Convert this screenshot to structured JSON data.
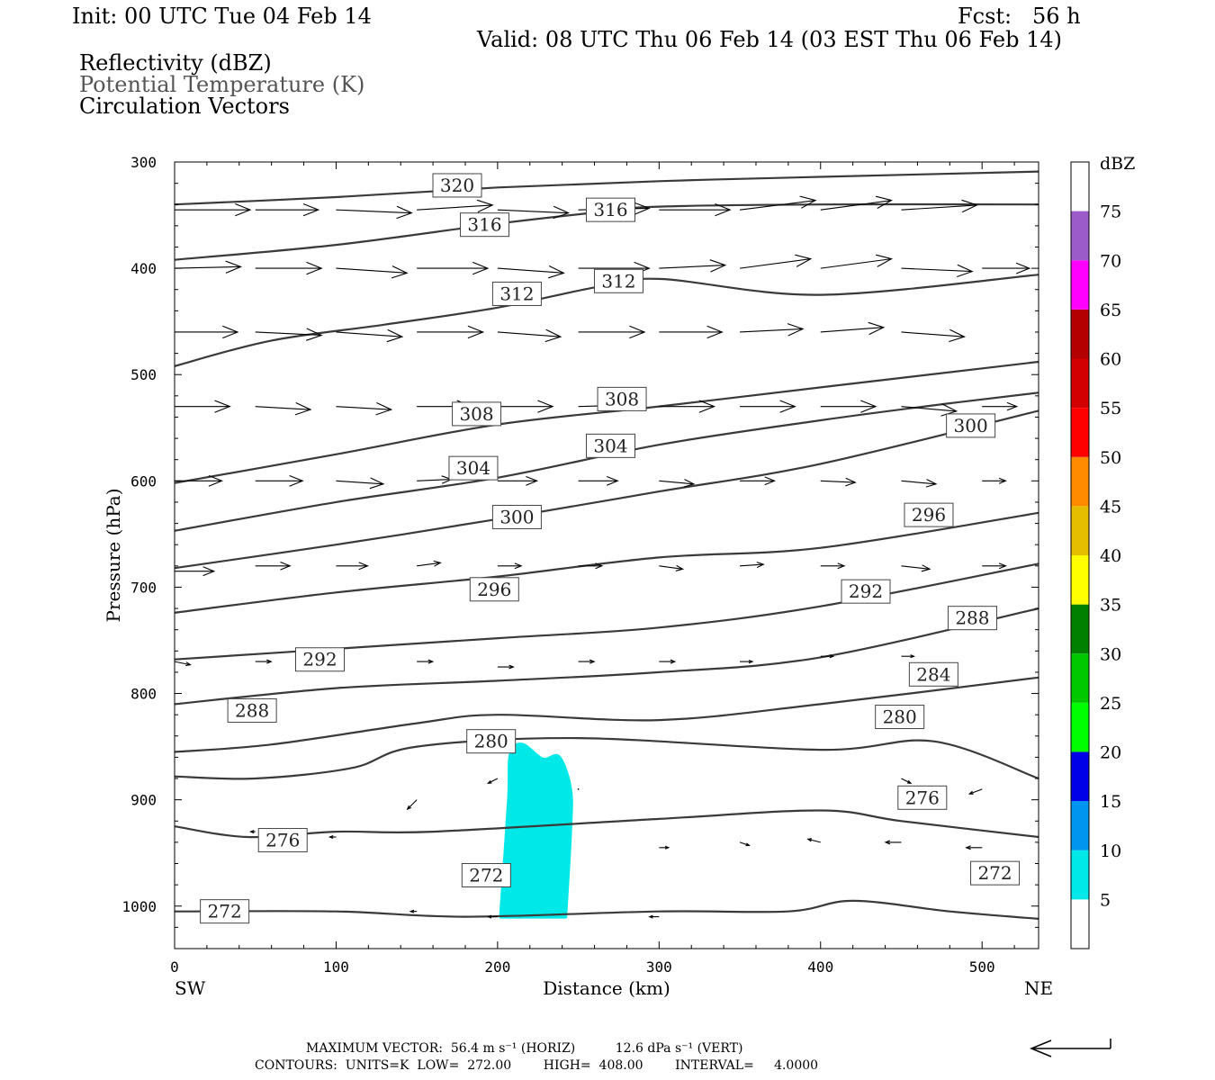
{
  "header": {
    "init": "Init: 00 UTC Tue 04 Feb 14",
    "fcst": "Fcst:   56 h",
    "valid": "Valid: 08 UTC Thu 06 Feb 14 (03 EST Thu 06 Feb 14)",
    "field1": "Reflectivity (dBZ)",
    "field2": "Potential Temperature (K)",
    "field3": "Circulation Vectors"
  },
  "footer": {
    "max_vector": "MAXIMUM VECTOR:  56.4 m s⁻¹ (HORIZ)          12.6 dPa s⁻¹ (VERT)",
    "contours": "CONTOURS:  UNITS=K  LOW=  272.00        HIGH=  408.00        INTERVAL=     4.0000"
  },
  "colors": {
    "contour": "#3a3a3a",
    "reflectivity_echo": "#00e8e8"
  },
  "chart_data": {
    "type": "contour",
    "xlabel": "Distance (km)",
    "ylabel": "Pressure (hPa)",
    "xlim": [
      0,
      535
    ],
    "ylim": [
      300,
      1040
    ],
    "x_ticks": [
      0,
      100,
      200,
      300,
      400,
      500
    ],
    "y_ticks": [
      300,
      400,
      500,
      600,
      700,
      800,
      900,
      1000
    ],
    "x_end_labels": {
      "left": "SW",
      "right": "NE"
    },
    "colorbar": {
      "unit": "dBZ",
      "levels": [
        5,
        10,
        15,
        20,
        25,
        30,
        35,
        40,
        45,
        50,
        55,
        60,
        65,
        70,
        75
      ],
      "colors": [
        "#00e8e8",
        "#0096f0",
        "#0000e8",
        "#00ff00",
        "#00c800",
        "#008000",
        "#ffff00",
        "#e6be00",
        "#ff8c00",
        "#ff0000",
        "#d20000",
        "#b40000",
        "#ff00ff",
        "#9b5bc8"
      ]
    },
    "theta_contours": [
      {
        "value": 320,
        "points": [
          [
            0,
            340
          ],
          [
            100,
            333
          ],
          [
            200,
            324
          ],
          [
            300,
            318
          ],
          [
            400,
            314
          ],
          [
            535,
            309
          ]
        ]
      },
      {
        "value": 316,
        "points": [
          [
            0,
            392
          ],
          [
            100,
            378
          ],
          [
            200,
            358
          ],
          [
            270,
            346
          ],
          [
            300,
            342
          ],
          [
            400,
            340
          ],
          [
            535,
            340
          ]
        ]
      },
      {
        "value": 312,
        "points": [
          [
            0,
            492
          ],
          [
            60,
            468
          ],
          [
            130,
            453
          ],
          [
            200,
            437
          ],
          [
            260,
            418
          ],
          [
            300,
            410
          ],
          [
            400,
            425
          ],
          [
            535,
            406
          ]
        ]
      },
      {
        "value": 308,
        "points": [
          [
            0,
            602
          ],
          [
            100,
            575
          ],
          [
            200,
            547
          ],
          [
            300,
            530
          ],
          [
            400,
            512
          ],
          [
            535,
            488
          ]
        ]
      },
      {
        "value": 304,
        "points": [
          [
            0,
            647
          ],
          [
            100,
            620
          ],
          [
            200,
            597
          ],
          [
            300,
            566
          ],
          [
            400,
            543
          ],
          [
            480,
            527
          ],
          [
            535,
            517
          ]
        ]
      },
      {
        "value": 300,
        "points": [
          [
            0,
            682
          ],
          [
            100,
            660
          ],
          [
            200,
            636
          ],
          [
            300,
            610
          ],
          [
            400,
            584
          ],
          [
            535,
            534
          ]
        ]
      },
      {
        "value": 296,
        "points": [
          [
            0,
            724
          ],
          [
            100,
            705
          ],
          [
            200,
            690
          ],
          [
            300,
            672
          ],
          [
            400,
            663
          ],
          [
            535,
            630
          ]
        ]
      },
      {
        "value": 292,
        "points": [
          [
            0,
            768
          ],
          [
            100,
            758
          ],
          [
            200,
            748
          ],
          [
            300,
            738
          ],
          [
            400,
            718
          ],
          [
            535,
            678
          ]
        ]
      },
      {
        "value": 288,
        "points": [
          [
            0,
            810
          ],
          [
            100,
            795
          ],
          [
            200,
            788
          ],
          [
            300,
            780
          ],
          [
            400,
            766
          ],
          [
            535,
            720
          ]
        ]
      },
      {
        "value": 284,
        "points": [
          [
            0,
            855
          ],
          [
            60,
            848
          ],
          [
            150,
            828
          ],
          [
            200,
            820
          ],
          [
            300,
            825
          ],
          [
            400,
            810
          ],
          [
            535,
            785
          ]
        ]
      },
      {
        "value": 280,
        "points": [
          [
            0,
            878
          ],
          [
            50,
            880
          ],
          [
            110,
            870
          ],
          [
            150,
            850
          ],
          [
            250,
            842
          ],
          [
            400,
            853
          ],
          [
            470,
            845
          ],
          [
            535,
            880
          ]
        ]
      },
      {
        "value": 276,
        "points": [
          [
            0,
            925
          ],
          [
            45,
            935
          ],
          [
            100,
            930
          ],
          [
            160,
            930
          ],
          [
            300,
            918
          ],
          [
            400,
            910
          ],
          [
            450,
            920
          ],
          [
            535,
            935
          ]
        ]
      },
      {
        "value": 272,
        "points": [
          [
            0,
            1005
          ],
          [
            100,
            1005
          ],
          [
            180,
            1010
          ],
          [
            300,
            1005
          ],
          [
            380,
            1005
          ],
          [
            420,
            995
          ],
          [
            480,
            1005
          ],
          [
            535,
            1012
          ]
        ]
      }
    ],
    "contour_labels": [
      {
        "text": "320",
        "x": 175,
        "p": 322
      },
      {
        "text": "316",
        "x": 192,
        "p": 359
      },
      {
        "text": "316",
        "x": 270,
        "p": 345
      },
      {
        "text": "312",
        "x": 212,
        "p": 424
      },
      {
        "text": "312",
        "x": 275,
        "p": 412
      },
      {
        "text": "308",
        "x": 187,
        "p": 537
      },
      {
        "text": "308",
        "x": 277,
        "p": 523
      },
      {
        "text": "300",
        "x": 493,
        "p": 548
      },
      {
        "text": "304",
        "x": 185,
        "p": 588
      },
      {
        "text": "304",
        "x": 270,
        "p": 567
      },
      {
        "text": "300",
        "x": 212,
        "p": 634
      },
      {
        "text": "296",
        "x": 467,
        "p": 632
      },
      {
        "text": "296",
        "x": 198,
        "p": 702
      },
      {
        "text": "292",
        "x": 428,
        "p": 704
      },
      {
        "text": "292",
        "x": 90,
        "p": 768
      },
      {
        "text": "288",
        "x": 494,
        "p": 729
      },
      {
        "text": "284",
        "x": 470,
        "p": 782
      },
      {
        "text": "288",
        "x": 48,
        "p": 816
      },
      {
        "text": "280",
        "x": 449,
        "p": 822
      },
      {
        "text": "280",
        "x": 196,
        "p": 845
      },
      {
        "text": "276",
        "x": 463,
        "p": 898
      },
      {
        "text": "276",
        "x": 67,
        "p": 938
      },
      {
        "text": "272",
        "x": 193,
        "p": 971
      },
      {
        "text": "272",
        "x": 508,
        "p": 969
      },
      {
        "text": "272",
        "x": 31,
        "p": 1005
      }
    ],
    "reflectivity_region": {
      "dbz_range": [
        5,
        10
      ],
      "outline": [
        [
          202,
          1010
        ],
        [
          207,
          900
        ],
        [
          208,
          858
        ],
        [
          215,
          848
        ],
        [
          228,
          862
        ],
        [
          238,
          860
        ],
        [
          245,
          890
        ],
        [
          245,
          930
        ],
        [
          242,
          1010
        ]
      ]
    },
    "vectors": [
      {
        "x": 0,
        "p": 345,
        "u": 48,
        "w": 0
      },
      {
        "x": 50,
        "p": 345,
        "u": 40,
        "w": 0
      },
      {
        "x": 100,
        "p": 345,
        "u": 48,
        "w": 2
      },
      {
        "x": 150,
        "p": 345,
        "u": 48,
        "w": -3
      },
      {
        "x": 200,
        "p": 345,
        "u": 45,
        "w": 2
      },
      {
        "x": 250,
        "p": 345,
        "u": 45,
        "w": -1
      },
      {
        "x": 300,
        "p": 345,
        "u": 45,
        "w": 0
      },
      {
        "x": 350,
        "p": 345,
        "u": 48,
        "w": -6
      },
      {
        "x": 400,
        "p": 345,
        "u": 45,
        "w": -6
      },
      {
        "x": 450,
        "p": 345,
        "u": 48,
        "w": -3
      },
      {
        "x": 0,
        "p": 400,
        "u": 42,
        "w": -1
      },
      {
        "x": 50,
        "p": 400,
        "u": 42,
        "w": 0
      },
      {
        "x": 100,
        "p": 400,
        "u": 45,
        "w": 3
      },
      {
        "x": 150,
        "p": 400,
        "u": 45,
        "w": 0
      },
      {
        "x": 200,
        "p": 400,
        "u": 42,
        "w": 3
      },
      {
        "x": 250,
        "p": 400,
        "u": 45,
        "w": 0
      },
      {
        "x": 300,
        "p": 400,
        "u": 42,
        "w": -2
      },
      {
        "x": 350,
        "p": 400,
        "u": 45,
        "w": -6
      },
      {
        "x": 400,
        "p": 400,
        "u": 45,
        "w": -6
      },
      {
        "x": 450,
        "p": 400,
        "u": 45,
        "w": 2
      },
      {
        "x": 500,
        "p": 400,
        "u": 30,
        "w": 0
      },
      {
        "x": 0,
        "p": 460,
        "u": 40,
        "w": 0
      },
      {
        "x": 50,
        "p": 460,
        "u": 42,
        "w": 2
      },
      {
        "x": 100,
        "p": 460,
        "u": 42,
        "w": 3
      },
      {
        "x": 150,
        "p": 460,
        "u": 42,
        "w": 0
      },
      {
        "x": 200,
        "p": 460,
        "u": 40,
        "w": 3
      },
      {
        "x": 250,
        "p": 460,
        "u": 42,
        "w": 0
      },
      {
        "x": 300,
        "p": 460,
        "u": 40,
        "w": 0
      },
      {
        "x": 350,
        "p": 460,
        "u": 40,
        "w": -2
      },
      {
        "x": 400,
        "p": 460,
        "u": 40,
        "w": -3
      },
      {
        "x": 450,
        "p": 460,
        "u": 40,
        "w": 3
      },
      {
        "x": 0,
        "p": 530,
        "u": 35,
        "w": 0
      },
      {
        "x": 50,
        "p": 530,
        "u": 35,
        "w": 2
      },
      {
        "x": 100,
        "p": 530,
        "u": 35,
        "w": 2
      },
      {
        "x": 150,
        "p": 530,
        "u": 35,
        "w": 0
      },
      {
        "x": 200,
        "p": 530,
        "u": 35,
        "w": 0
      },
      {
        "x": 250,
        "p": 530,
        "u": 35,
        "w": -1
      },
      {
        "x": 300,
        "p": 530,
        "u": 35,
        "w": 0
      },
      {
        "x": 350,
        "p": 530,
        "u": 35,
        "w": 0
      },
      {
        "x": 400,
        "p": 530,
        "u": 35,
        "w": 0
      },
      {
        "x": 450,
        "p": 530,
        "u": 35,
        "w": 3
      },
      {
        "x": 500,
        "p": 530,
        "u": 22,
        "w": 0
      },
      {
        "x": 0,
        "p": 600,
        "u": 30,
        "w": 0
      },
      {
        "x": 50,
        "p": 600,
        "u": 30,
        "w": 0
      },
      {
        "x": 100,
        "p": 600,
        "u": 30,
        "w": 2
      },
      {
        "x": 150,
        "p": 600,
        "u": 22,
        "w": -1
      },
      {
        "x": 200,
        "p": 600,
        "u": 25,
        "w": 0
      },
      {
        "x": 250,
        "p": 600,
        "u": 25,
        "w": 0
      },
      {
        "x": 300,
        "p": 600,
        "u": 22,
        "w": 2
      },
      {
        "x": 350,
        "p": 600,
        "u": 22,
        "w": 0
      },
      {
        "x": 400,
        "p": 600,
        "u": 22,
        "w": 1
      },
      {
        "x": 450,
        "p": 600,
        "u": 22,
        "w": 2
      },
      {
        "x": 500,
        "p": 600,
        "u": 15,
        "w": 0
      },
      {
        "x": 0,
        "p": 685,
        "u": 25,
        "w": 0
      },
      {
        "x": 50,
        "p": 680,
        "u": 22,
        "w": 0
      },
      {
        "x": 100,
        "p": 680,
        "u": 20,
        "w": 0
      },
      {
        "x": 150,
        "p": 680,
        "u": 15,
        "w": -2
      },
      {
        "x": 200,
        "p": 680,
        "u": 15,
        "w": 0
      },
      {
        "x": 250,
        "p": 680,
        "u": 15,
        "w": 0
      },
      {
        "x": 300,
        "p": 680,
        "u": 15,
        "w": 2
      },
      {
        "x": 350,
        "p": 680,
        "u": 15,
        "w": -1
      },
      {
        "x": 400,
        "p": 680,
        "u": 15,
        "w": 0
      },
      {
        "x": 450,
        "p": 680,
        "u": 18,
        "w": 2
      },
      {
        "x": 500,
        "p": 680,
        "u": 15,
        "w": 0
      },
      {
        "x": 0,
        "p": 770,
        "u": 10,
        "w": 2
      },
      {
        "x": 50,
        "p": 770,
        "u": 10,
        "w": 0
      },
      {
        "x": 150,
        "p": 770,
        "u": 10,
        "w": 0
      },
      {
        "x": 200,
        "p": 775,
        "u": 10,
        "w": 0
      },
      {
        "x": 250,
        "p": 770,
        "u": 10,
        "w": 0
      },
      {
        "x": 300,
        "p": 770,
        "u": 10,
        "w": 0
      },
      {
        "x": 350,
        "p": 770,
        "u": 8,
        "w": 0
      },
      {
        "x": 400,
        "p": 765,
        "u": 8,
        "w": 0
      },
      {
        "x": 450,
        "p": 765,
        "u": 8,
        "w": 0
      },
      {
        "x": 150,
        "p": 900,
        "u": -6,
        "w": 6
      },
      {
        "x": 200,
        "p": 880,
        "u": -6,
        "w": 3
      },
      {
        "x": 250,
        "p": 890,
        "u": 0,
        "w": 0
      },
      {
        "x": 400,
        "p": 940,
        "u": -8,
        "w": -2
      },
      {
        "x": 350,
        "p": 940,
        "u": 6,
        "w": 2
      },
      {
        "x": 300,
        "p": 945,
        "u": 6,
        "w": 0
      },
      {
        "x": 450,
        "p": 940,
        "u": -10,
        "w": 0
      },
      {
        "x": 500,
        "p": 945,
        "u": -10,
        "w": 0
      },
      {
        "x": 500,
        "p": 890,
        "u": -8,
        "w": 3
      },
      {
        "x": 450,
        "p": 880,
        "u": 6,
        "w": 3
      },
      {
        "x": 300,
        "p": 1010,
        "u": -6,
        "w": 0
      },
      {
        "x": 200,
        "p": 1010,
        "u": -6,
        "w": 0
      },
      {
        "x": 150,
        "p": 1005,
        "u": -4,
        "w": 0
      },
      {
        "x": 100,
        "p": 935,
        "u": -4,
        "w": 0
      },
      {
        "x": 50,
        "p": 930,
        "u": -3,
        "w": 0
      }
    ]
  }
}
